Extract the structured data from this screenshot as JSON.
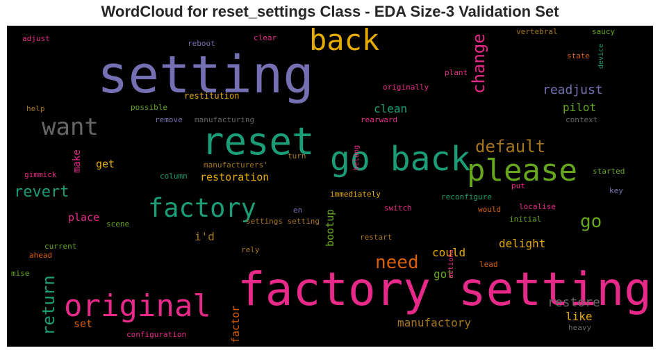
{
  "chart_data": {
    "type": "wordcloud",
    "title": "WordCloud for reset_settings Class - EDA Size-3 Validation Set",
    "background": "#000000",
    "palette": {
      "purple": "#7570b3",
      "teal": "#1b9e77",
      "orange": "#d95f02",
      "magenta": "#e7298a",
      "green": "#66a61e",
      "yellow": "#e6ab02",
      "brown": "#a6761d",
      "gray": "#666666"
    },
    "words": [
      {
        "text": "setting",
        "color": "purple"
      },
      {
        "text": "factory setting",
        "color": "magenta"
      },
      {
        "text": "reset",
        "color": "teal"
      },
      {
        "text": "go back",
        "color": "teal"
      },
      {
        "text": "please",
        "color": "green"
      },
      {
        "text": "original",
        "color": "magenta"
      },
      {
        "text": "factory",
        "color": "teal"
      },
      {
        "text": "back",
        "color": "yellow"
      },
      {
        "text": "want",
        "color": "gray"
      },
      {
        "text": "change",
        "color": "magenta"
      },
      {
        "text": "default",
        "color": "brown"
      },
      {
        "text": "need",
        "color": "orange"
      },
      {
        "text": "return",
        "color": "teal"
      },
      {
        "text": "revert",
        "color": "teal"
      },
      {
        "text": "go",
        "color": "green"
      },
      {
        "text": "readjust",
        "color": "purple"
      },
      {
        "text": "clean",
        "color": "teal"
      },
      {
        "text": "pilot",
        "color": "green"
      },
      {
        "text": "restore",
        "color": "gray"
      },
      {
        "text": "manufactory",
        "color": "brown"
      },
      {
        "text": "delight",
        "color": "yellow"
      },
      {
        "text": "restoration",
        "color": "yellow"
      },
      {
        "text": "bootup",
        "color": "green"
      },
      {
        "text": "i'd",
        "color": "brown"
      },
      {
        "text": "place",
        "color": "magenta"
      },
      {
        "text": "could",
        "color": "yellow"
      },
      {
        "text": "like",
        "color": "yellow"
      },
      {
        "text": "got",
        "color": "green"
      },
      {
        "text": "set",
        "color": "orange"
      },
      {
        "text": "factor",
        "color": "orange"
      },
      {
        "text": "get",
        "color": "yellow"
      },
      {
        "text": "make",
        "color": "magenta"
      },
      {
        "text": "restitution",
        "color": "yellow"
      },
      {
        "text": "vertebral",
        "color": "brown"
      },
      {
        "text": "saucy",
        "color": "green"
      },
      {
        "text": "adjust",
        "color": "magenta"
      },
      {
        "text": "reboot",
        "color": "purple"
      },
      {
        "text": "clear",
        "color": "magenta"
      },
      {
        "text": "state",
        "color": "orange"
      },
      {
        "text": "device",
        "color": "teal"
      },
      {
        "text": "plant",
        "color": "magenta"
      },
      {
        "text": "originally",
        "color": "magenta"
      },
      {
        "text": "help",
        "color": "brown"
      },
      {
        "text": "possible",
        "color": "green"
      },
      {
        "text": "remove",
        "color": "purple"
      },
      {
        "text": "manufacturing",
        "color": "gray"
      },
      {
        "text": "rearward",
        "color": "magenta"
      },
      {
        "text": "context",
        "color": "gray"
      },
      {
        "text": "gimmick",
        "color": "magenta"
      },
      {
        "text": "column",
        "color": "teal"
      },
      {
        "text": "manufacturers'",
        "color": "brown"
      },
      {
        "text": "turn",
        "color": "brown"
      },
      {
        "text": "belong",
        "color": "magenta"
      },
      {
        "text": "started",
        "color": "green"
      },
      {
        "text": "put",
        "color": "magenta"
      },
      {
        "text": "key",
        "color": "purple"
      },
      {
        "text": "immediately",
        "color": "yellow"
      },
      {
        "text": "reconfigure",
        "color": "teal"
      },
      {
        "text": "scene",
        "color": "green"
      },
      {
        "text": "en",
        "color": "purple"
      },
      {
        "text": "switch",
        "color": "magenta"
      },
      {
        "text": "would",
        "color": "orange"
      },
      {
        "text": "localise",
        "color": "magenta"
      },
      {
        "text": "settings setting",
        "color": "brown"
      },
      {
        "text": "initial",
        "color": "green"
      },
      {
        "text": "current",
        "color": "green"
      },
      {
        "text": "ahead",
        "color": "orange"
      },
      {
        "text": "rely",
        "color": "brown"
      },
      {
        "text": "restart",
        "color": "brown"
      },
      {
        "text": "mise",
        "color": "green"
      },
      {
        "text": "lead",
        "color": "orange"
      },
      {
        "text": "actions",
        "color": "magenta"
      },
      {
        "text": "heavy",
        "color": "gray"
      },
      {
        "text": "configuration",
        "color": "magenta"
      }
    ]
  }
}
